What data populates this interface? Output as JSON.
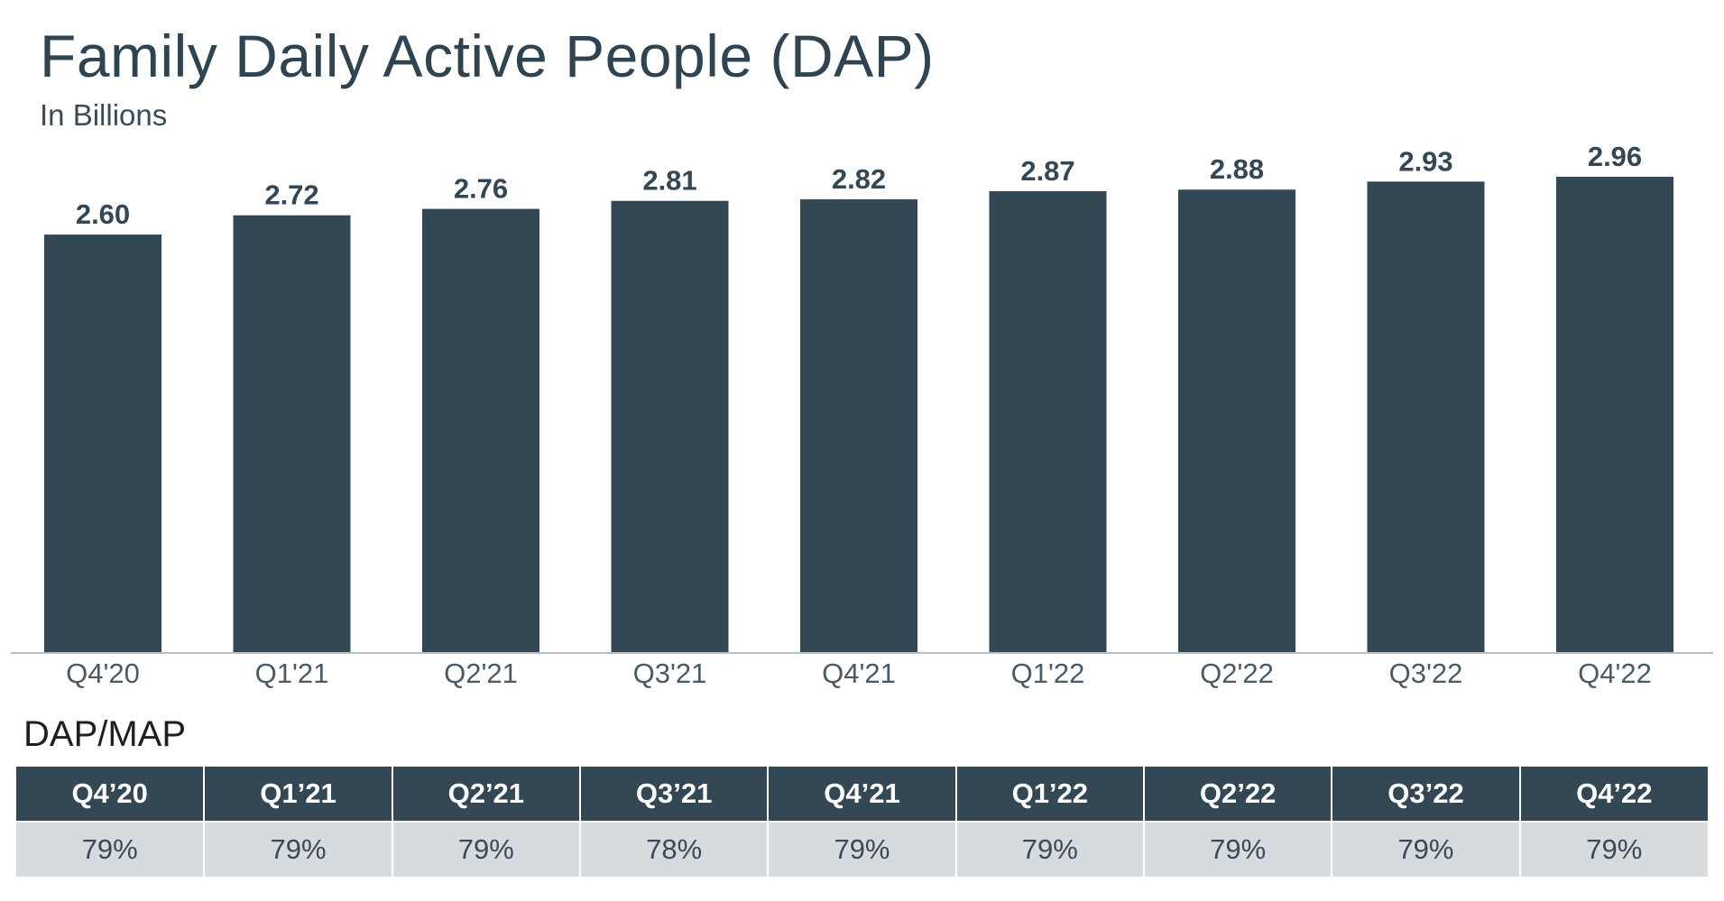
{
  "chart_data": {
    "type": "bar",
    "title": "Family Daily Active People (DAP)",
    "subtitle": "In Billions",
    "categories": [
      "Q4'20",
      "Q1'21",
      "Q2'21",
      "Q3'21",
      "Q4'21",
      "Q1'22",
      "Q2'22",
      "Q3'22",
      "Q4'22"
    ],
    "values": [
      2.6,
      2.72,
      2.76,
      2.81,
      2.82,
      2.87,
      2.88,
      2.93,
      2.96
    ],
    "value_labels": [
      "2.60",
      "2.72",
      "2.76",
      "2.81",
      "2.82",
      "2.87",
      "2.88",
      "2.93",
      "2.96"
    ],
    "ylim": [
      0,
      2.96
    ],
    "grid": false,
    "legend": "none",
    "colors": {
      "bar": "#344754"
    }
  },
  "ratio_table": {
    "title": "DAP/MAP",
    "headers": [
      "Q4’20",
      "Q1’21",
      "Q2’21",
      "Q3’21",
      "Q4’21",
      "Q1’22",
      "Q2’22",
      "Q3’22",
      "Q4’22"
    ],
    "values": [
      "79%",
      "79%",
      "79%",
      "78%",
      "79%",
      "79%",
      "79%",
      "79%",
      "79%"
    ],
    "colors": {
      "header_bg": "#344754",
      "cell_bg": "#d6dbe0"
    }
  }
}
